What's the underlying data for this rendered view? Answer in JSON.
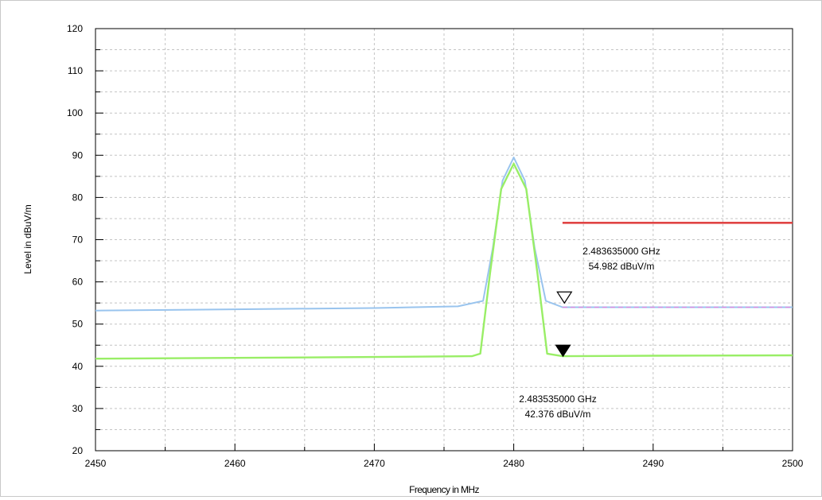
{
  "chart_data": {
    "type": "line",
    "xlabel": "Frequency in MHz",
    "ylabel": "Level in dBuV/m",
    "xlim": [
      2450,
      2500
    ],
    "ylim": [
      20,
      120
    ],
    "x_ticks": [
      "2450",
      "2460",
      "2470",
      "2480",
      "2490",
      "2500"
    ],
    "y_ticks": [
      "20",
      "30",
      "40",
      "50",
      "60",
      "70",
      "80",
      "90",
      "100",
      "110",
      "120"
    ],
    "grid": true,
    "series": [
      {
        "color": "#99c4ee",
        "x": [
          2450,
          2460,
          2470,
          2476,
          2477.8,
          2478.5,
          2479.2,
          2480,
          2480.8,
          2481.5,
          2482.3,
          2483.5,
          2490,
          2500
        ],
        "y": [
          53.2,
          53.5,
          53.8,
          54.2,
          55.5,
          68,
          84,
          89.5,
          84,
          68,
          55.5,
          54,
          54,
          54
        ]
      },
      {
        "color": "#99ee66",
        "x": [
          2450,
          2460,
          2470,
          2477,
          2477.6,
          2478.3,
          2479.1,
          2480,
          2480.9,
          2481.7,
          2482.4,
          2483.5,
          2490,
          2500
        ],
        "y": [
          41.8,
          42.0,
          42.2,
          42.4,
          43,
          62,
          82,
          88,
          82,
          62,
          43,
          42.4,
          42.5,
          42.6
        ]
      },
      {
        "color": "#e04444",
        "x": [
          2483.5,
          2500
        ],
        "y": [
          74,
          74
        ]
      },
      {
        "color": "#e088e0",
        "x": [
          2483.5,
          2500
        ],
        "y": [
          54,
          54
        ]
      }
    ],
    "markers": [
      {
        "x": 2483.635,
        "y": 54.982,
        "fill": "none",
        "label_freq": "2.483635000 GHz",
        "label_level": "54.982 dBuV/m"
      },
      {
        "x": 2483.535,
        "y": 42.376,
        "fill": "#000000",
        "label_freq": "2.483535000 GHz",
        "label_level": "42.376 dBuV/m"
      }
    ]
  }
}
